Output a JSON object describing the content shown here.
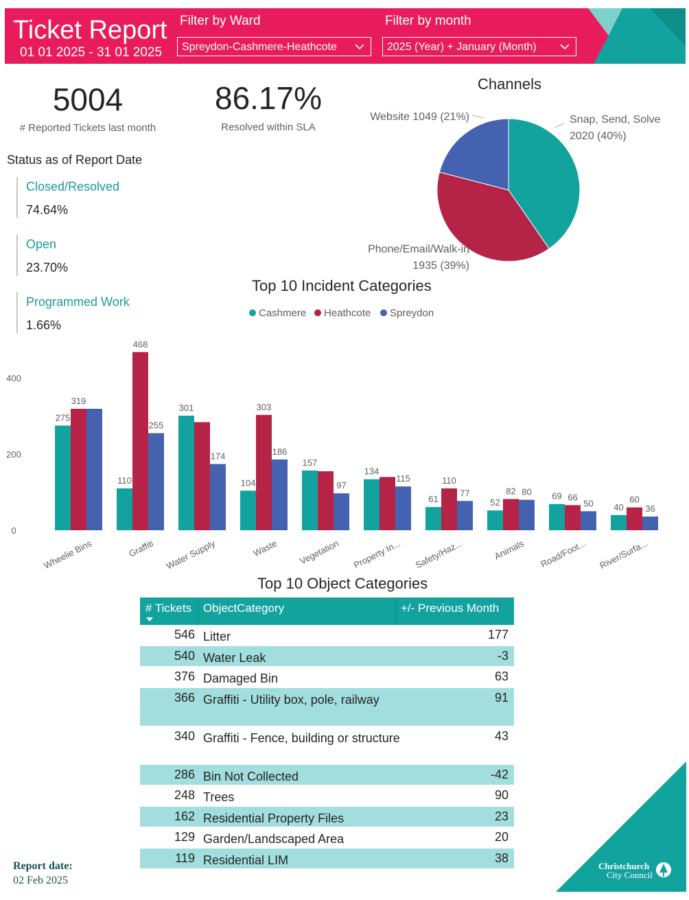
{
  "header": {
    "title": "Ticket Report",
    "date_range": "01 01 2025 - 31 01 2025",
    "ward_filter": {
      "label": "Filter by Ward",
      "value": "Spreydon-Cashmere-Heathcote"
    },
    "month_filter": {
      "label": "Filter by month",
      "value": "2025 (Year) + January (Month)"
    },
    "colors": {
      "banner": "#e81c5d",
      "deco_teal": "#13a39f",
      "deco_light": "#7fd1cb"
    }
  },
  "kpis": [
    {
      "value": "5004",
      "label": "# Reported Tickets last month"
    },
    {
      "value": "86.17%",
      "label": "Resolved within SLA"
    }
  ],
  "status": {
    "title": "Status as of Report Date",
    "items": [
      {
        "label": "Closed/Resolved",
        "value": "74.64%"
      },
      {
        "label": "Open",
        "value": "23.70%"
      },
      {
        "label": "Programmed Work",
        "value": "1.66%"
      }
    ]
  },
  "chart_data": [
    {
      "type": "pie",
      "title": "Channels",
      "slices": [
        {
          "name": "Snap, Send, Solve",
          "value": 2020,
          "label_line1": "Snap, Send, Solve",
          "label_line2": "2020 (40%)",
          "color": "#13a39f"
        },
        {
          "name": "Phone/Email/Walk-in",
          "value": 1935,
          "label_line1": "Phone/Email/Walk-in",
          "label_line2": "1935 (39%)",
          "color": "#b52446"
        },
        {
          "name": "Website",
          "value": 1049,
          "label_line1": "Website 1049 (21%)",
          "label_line2": "",
          "color": "#4462b0"
        }
      ]
    },
    {
      "type": "bar",
      "title": "Top 10 Incident Categories",
      "categories": [
        "Wheelie Bins",
        "Graffiti",
        "Water Supply",
        "Waste",
        "Vegetation",
        "Property In...",
        "Safety/Haz...",
        "Animals",
        "Road/Foot...",
        "River/Surfa..."
      ],
      "series": [
        {
          "name": "Cashmere",
          "color": "#13a39f",
          "values": [
            275,
            110,
            301,
            104,
            157,
            134,
            61,
            52,
            69,
            40
          ],
          "labels": [
            "275",
            "110",
            "301",
            "104",
            "157",
            "134",
            "61",
            "52",
            "69",
            "40"
          ]
        },
        {
          "name": "Heathcote",
          "color": "#b52446",
          "values": [
            319,
            468,
            284,
            303,
            155,
            140,
            110,
            82,
            66,
            60
          ],
          "labels": [
            "319",
            "468",
            "",
            "303",
            "",
            "",
            "110",
            "82",
            "66",
            "60"
          ]
        },
        {
          "name": "Spreydon",
          "color": "#4462b0",
          "values": [
            319,
            255,
            174,
            186,
            97,
            115,
            77,
            80,
            50,
            36
          ],
          "labels": [
            "",
            "255",
            "174",
            "186",
            "97",
            "115",
            "77",
            "80",
            "50",
            "36"
          ]
        }
      ],
      "yticks": [
        "0",
        "200",
        "400"
      ],
      "ylim": [
        0,
        480
      ],
      "legend_position": "top-center"
    }
  ],
  "object_table": {
    "title": "Top 10 Object Categories",
    "headers": {
      "tickets": "# Tickets",
      "category": "ObjectCategory",
      "diff": "+/- Previous Month"
    },
    "rows": [
      {
        "tickets": "546",
        "category": "Litter",
        "diff": "177"
      },
      {
        "tickets": "540",
        "category": "Water Leak",
        "diff": "-3"
      },
      {
        "tickets": "376",
        "category": "Damaged Bin",
        "diff": "63"
      },
      {
        "tickets": "366",
        "category": "Graffiti - Utility box, pole, railway",
        "diff": "91"
      },
      {
        "tickets": "340",
        "category": "Graffiti - Fence, building or structure",
        "diff": "43"
      },
      {
        "tickets": "286",
        "category": "Bin Not Collected",
        "diff": "-42"
      },
      {
        "tickets": "248",
        "category": "Trees",
        "diff": "90"
      },
      {
        "tickets": "162",
        "category": "Residential Property Files",
        "diff": "23"
      },
      {
        "tickets": "129",
        "category": "Garden/Landscaped Area",
        "diff": "20"
      },
      {
        "tickets": "119",
        "category": "Residential LIM",
        "diff": "38"
      }
    ]
  },
  "footer": {
    "report_date_label": "Report date:",
    "report_date": "02 Feb 2025",
    "logo_line1": "Christchurch",
    "logo_line2": "City Council"
  }
}
